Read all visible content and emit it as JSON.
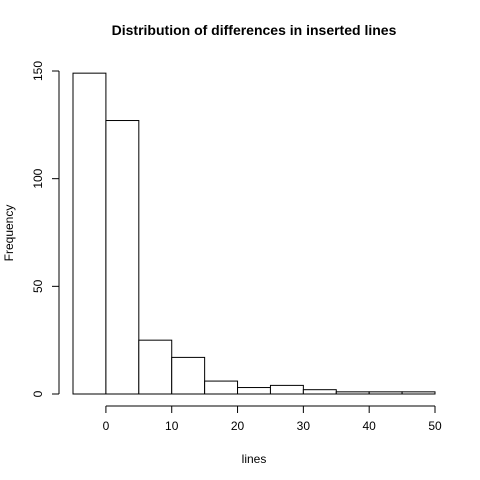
{
  "chart_data": {
    "type": "bar",
    "title": "Distribution of differences in inserted lines",
    "xlabel": "lines",
    "ylabel": "Frequency",
    "bins": [
      {
        "from": -5,
        "to": 0,
        "count": 149
      },
      {
        "from": 0,
        "to": 5,
        "count": 127
      },
      {
        "from": 5,
        "to": 10,
        "count": 25
      },
      {
        "from": 10,
        "to": 15,
        "count": 17
      },
      {
        "from": 15,
        "to": 20,
        "count": 6
      },
      {
        "from": 20,
        "to": 25,
        "count": 3
      },
      {
        "from": 25,
        "to": 30,
        "count": 4
      },
      {
        "from": 30,
        "to": 35,
        "count": 2
      },
      {
        "from": 35,
        "to": 40,
        "count": 1
      },
      {
        "from": 40,
        "to": 45,
        "count": 1
      },
      {
        "from": 45,
        "to": 50,
        "count": 1
      }
    ],
    "x_ticks": [
      0,
      10,
      20,
      30,
      40,
      50
    ],
    "y_ticks": [
      0,
      50,
      100,
      150
    ],
    "xlim": [
      -5,
      50
    ],
    "ylim": [
      0,
      150
    ],
    "grid": false
  }
}
